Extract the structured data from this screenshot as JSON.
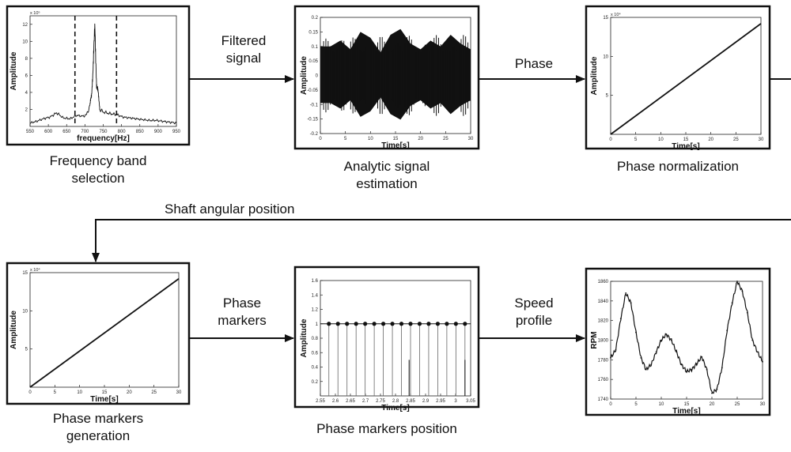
{
  "panels": [
    {
      "key": "freq",
      "caption": "Frequency band\nselection",
      "xlabel": "frequency[Hz]",
      "ylabel": "Amplitude",
      "exponent": "x 10⁵",
      "xticks": [
        "550",
        "600",
        "650",
        "700",
        "750",
        "800",
        "850",
        "900",
        "950"
      ],
      "yticks": [
        "2",
        "4",
        "6",
        "8",
        "10",
        "12"
      ],
      "band": [
        675,
        800
      ]
    },
    {
      "key": "analytic",
      "caption": "Analytic signal\nestimation",
      "xlabel": "Time[s]",
      "ylabel": "Amplitude",
      "xticks": [
        "0",
        "5",
        "10",
        "15",
        "20",
        "25",
        "30"
      ],
      "yticks": [
        "0.2",
        "0.15",
        "0.1",
        "0.05",
        "0",
        "-0.05",
        "-0.1",
        "-0.15",
        "-0.2"
      ]
    },
    {
      "key": "normalization",
      "caption": "Phase normalization",
      "xlabel": "Time[s]",
      "ylabel": "Amplitude",
      "exponent": "x 10⁴",
      "xticks": [
        "0",
        "5",
        "10",
        "15",
        "20",
        "25",
        "30"
      ],
      "yticks": [
        "5",
        "10",
        "15"
      ]
    },
    {
      "key": "generation",
      "caption": "Phase markers\ngeneration",
      "xlabel": "Time[s]",
      "ylabel": "Amplitude",
      "exponent": "x 10⁴",
      "xticks": [
        "0",
        "5",
        "10",
        "15",
        "20",
        "25",
        "30"
      ],
      "yticks": [
        "5",
        "10",
        "15"
      ]
    },
    {
      "key": "markers",
      "caption": "Phase markers position",
      "xlabel": "Time[s]",
      "ylabel": "Amplitude",
      "xticks": [
        "2.55",
        "2.6",
        "2.65",
        "2.7",
        "2.75",
        "2.8",
        "2.85",
        "2.9",
        "2.95",
        "3",
        "3.05"
      ],
      "yticks": [
        "0.2",
        "0.4",
        "0.6",
        "0.8",
        "1",
        "1.2",
        "1.4",
        "1.6"
      ]
    },
    {
      "key": "speed",
      "caption": "",
      "xlabel": "Time[s]",
      "ylabel": "RPM",
      "xticks": [
        "0",
        "5",
        "10",
        "15",
        "20",
        "25",
        "30"
      ],
      "yticks": [
        "1740",
        "1760",
        "1780",
        "1800",
        "1820",
        "1840",
        "1860"
      ]
    }
  ],
  "arrows": {
    "filtered": "Filtered\nsignal",
    "phase": "Phase",
    "shaft": "Shaft angular position",
    "markers": "Phase\nmarkers",
    "speed": "Speed\nprofile"
  },
  "chart_data": [
    {
      "type": "line",
      "xlabel": "frequency[Hz]",
      "ylabel": "Amplitude",
      "y_multiplier": "x 10^5",
      "xlim": [
        540,
        980
      ],
      "ylim": [
        0,
        13
      ],
      "band_edges_dashed": [
        675,
        800
      ],
      "x": [
        540,
        560,
        580,
        600,
        620,
        640,
        660,
        680,
        700,
        710,
        720,
        725,
        730,
        735,
        740,
        745,
        750,
        760,
        780,
        800,
        820,
        840,
        860,
        880,
        900,
        920,
        940,
        960,
        980
      ],
      "values": [
        0.4,
        0.6,
        0.9,
        1.1,
        1.6,
        1.0,
        0.9,
        1.3,
        1.2,
        1.4,
        2.4,
        3.8,
        7.3,
        11.5,
        5.0,
        3.8,
        2.0,
        1.7,
        1.5,
        1.4,
        1.1,
        1.0,
        0.9,
        0.8,
        0.7,
        0.7,
        0.6,
        0.5,
        0.4
      ]
    },
    {
      "type": "area",
      "xlabel": "Time[s]",
      "ylabel": "Amplitude",
      "xlim": [
        0,
        30
      ],
      "ylim": [
        -0.2,
        0.2
      ],
      "x": [
        0,
        2,
        4,
        6,
        8,
        10,
        12,
        14,
        16,
        18,
        20,
        22,
        24,
        26,
        28,
        30
      ],
      "envelope": [
        0.1,
        0.1,
        0.12,
        0.09,
        0.15,
        0.13,
        0.08,
        0.14,
        0.16,
        0.11,
        0.09,
        0.12,
        0.1,
        0.14,
        0.11,
        0.09
      ]
    },
    {
      "type": "line",
      "xlabel": "Time[s]",
      "ylabel": "Amplitude",
      "y_multiplier": "x 10^4",
      "xlim": [
        0,
        30
      ],
      "ylim": [
        0,
        15
      ],
      "x": [
        0,
        30
      ],
      "values": [
        0,
        14.2
      ]
    },
    {
      "type": "line",
      "xlabel": "Time[s]",
      "ylabel": "Amplitude",
      "y_multiplier": "x 10^4",
      "xlim": [
        0,
        30
      ],
      "ylim": [
        0,
        15
      ],
      "x": [
        0,
        30
      ],
      "values": [
        0,
        14.2
      ]
    },
    {
      "type": "scatter",
      "xlabel": "Time[s]",
      "ylabel": "Amplitude",
      "xlim": [
        2.54,
        3.07
      ],
      "ylim": [
        0,
        1.6
      ],
      "stem_markers_x": [
        2.57,
        2.602,
        2.634,
        2.666,
        2.698,
        2.73,
        2.762,
        2.794,
        2.826,
        2.858,
        2.89,
        2.922,
        2.954,
        2.986,
        3.018,
        3.05
      ],
      "stem_value": 1,
      "half_stems_x": [
        2.853,
        3.05
      ],
      "half_stem_value": 0.5
    },
    {
      "type": "line",
      "xlabel": "Time[s]",
      "ylabel": "RPM",
      "xlim": [
        0,
        30
      ],
      "ylim": [
        1740,
        1860
      ],
      "x": [
        0,
        1,
        2,
        3,
        4,
        5,
        6,
        7,
        8,
        9,
        10,
        11,
        12,
        13,
        14,
        15,
        16,
        17,
        18,
        19,
        20,
        21,
        22,
        23,
        24,
        25,
        26,
        27,
        28,
        29,
        30
      ],
      "values": [
        1782,
        1790,
        1822,
        1848,
        1838,
        1808,
        1782,
        1770,
        1775,
        1788,
        1800,
        1806,
        1800,
        1788,
        1775,
        1768,
        1770,
        1776,
        1783,
        1770,
        1746,
        1750,
        1772,
        1810,
        1838,
        1860,
        1850,
        1828,
        1800,
        1788,
        1778
      ]
    }
  ]
}
